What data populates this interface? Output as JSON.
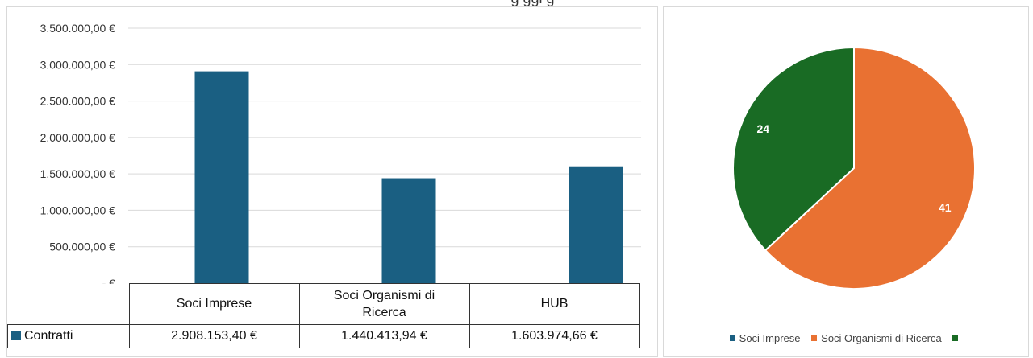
{
  "header": {
    "title_partial": "g                                        ggi g"
  },
  "chart_data": [
    {
      "type": "bar",
      "categories": [
        "Soci Imprese",
        "Soci Organismi di Ricerca",
        "HUB"
      ],
      "series": [
        {
          "name": "Contratti",
          "values": [
            2908153.4,
            1440413.94,
            1603974.66
          ],
          "color": "#1a5f82"
        }
      ],
      "value_labels": [
        "2.908.153,40 €",
        "1.440.413,94 €",
        "1.603.974,66 €"
      ],
      "yticks": [
        "3.500.000,00 €",
        "3.000.000,00 €",
        "2.500.000,00 €",
        "2.000.000,00 €",
        "1.500.000,00 €",
        "1.000.000,00 €",
        "500.000,00 €",
        "- €"
      ],
      "ylim": [
        0,
        3500000
      ],
      "grid": true,
      "data_table": true
    },
    {
      "type": "pie",
      "labels": [
        "Soci Imprese",
        "Soci Organismi di Ricerca",
        ""
      ],
      "values": [
        0,
        41,
        24
      ],
      "data_labels": [
        "",
        "41",
        "24"
      ],
      "colors": [
        "#1a5f82",
        "#e97132",
        "#196b24"
      ],
      "legend": "bottom"
    }
  ]
}
